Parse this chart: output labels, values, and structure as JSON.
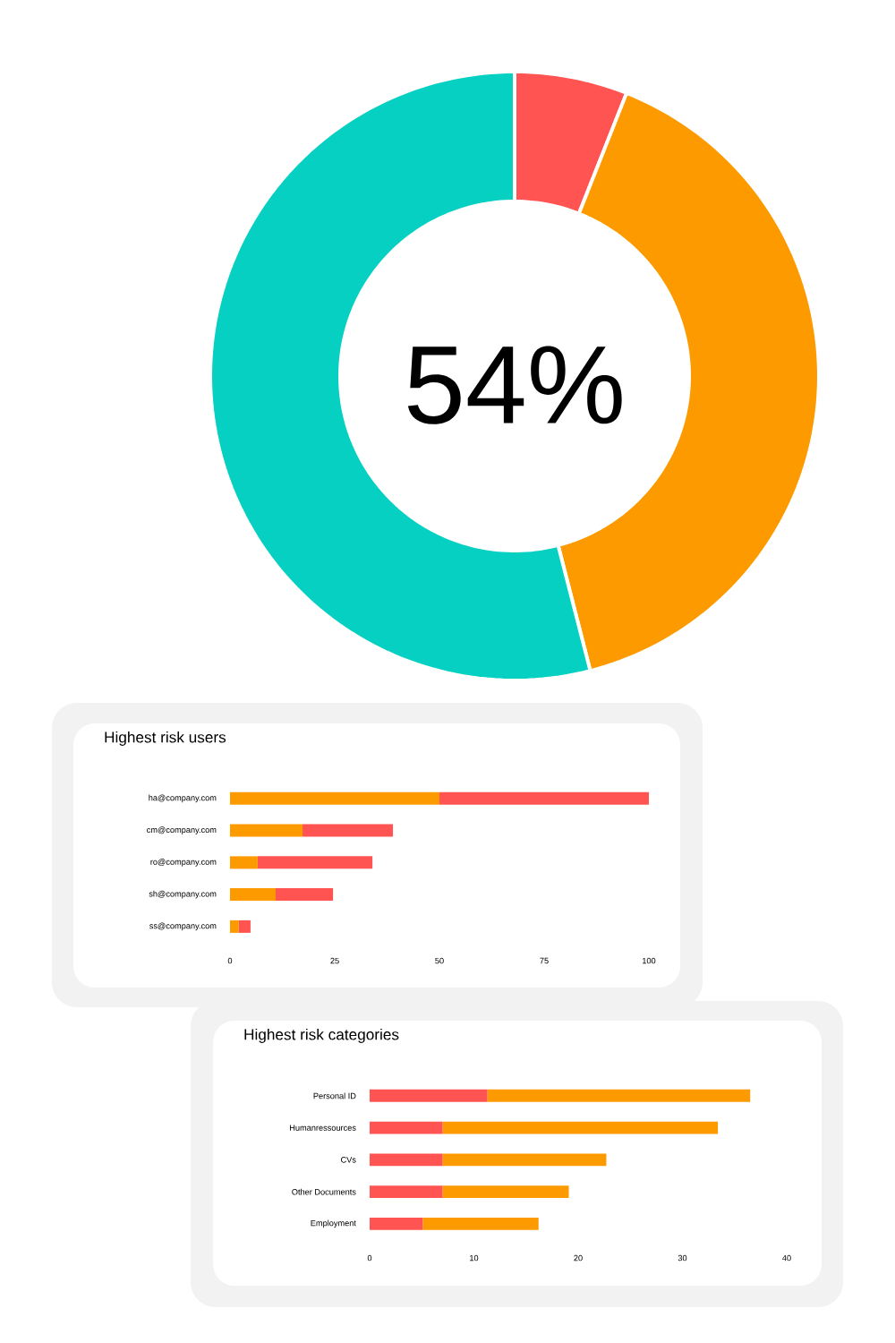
{
  "chart_data": [
    {
      "type": "donut",
      "categories": [
        null,
        null,
        null
      ],
      "values": [
        6,
        40,
        54
      ],
      "colors": [
        "#ff5451",
        "#fd9a00",
        "#05d0c1"
      ],
      "annotations": [
        "54%"
      ]
    },
    {
      "type": "bar",
      "title": "Highest risk users",
      "orientation": "horizontal",
      "stacked": true,
      "categories": [
        "ha@company.com",
        "cm@company.com",
        "ro@company.com",
        "sh@company.com",
        "ss@company.com"
      ],
      "series": [
        {
          "color": "#fd9a00",
          "values": [
            50,
            17.3,
            6.6,
            10.9,
            2.1
          ]
        },
        {
          "color": "#ff5451",
          "values": [
            50,
            21.6,
            27.4,
            13.7,
            2.8
          ]
        }
      ],
      "xlim": [
        0,
        100
      ],
      "xticks": [
        0,
        25,
        50,
        75,
        100
      ]
    },
    {
      "type": "bar",
      "title": "Highest risk categories",
      "orientation": "horizontal",
      "stacked": true,
      "categories": [
        "Personal ID",
        "Humanressources",
        "CVs",
        "Other Documents",
        "Employment"
      ],
      "series": [
        {
          "color": "#ff5451",
          "values": [
            11.3,
            7.0,
            7.0,
            7.0,
            5.1
          ]
        },
        {
          "color": "#fd9a00",
          "values": [
            25.2,
            26.4,
            15.7,
            12.1,
            11.1
          ]
        }
      ],
      "xlim": [
        0,
        40
      ],
      "xticks": [
        0,
        10,
        20,
        30,
        40
      ]
    }
  ]
}
